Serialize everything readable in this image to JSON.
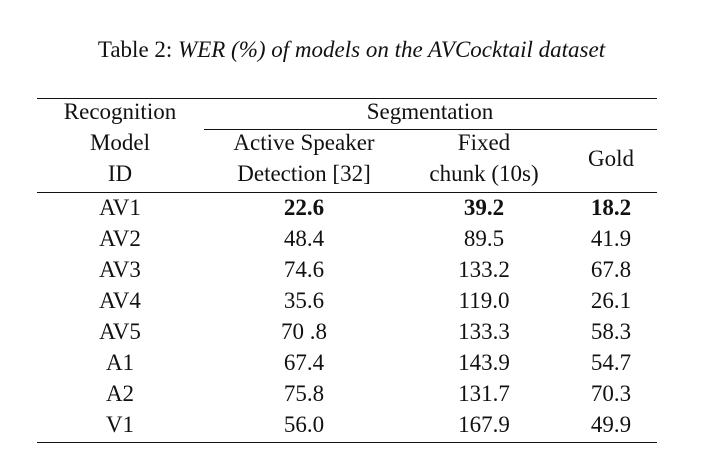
{
  "caption": {
    "prefix": "Table 2:",
    "title": "WER (%) of models on the AVCocktail dataset"
  },
  "table": {
    "header": {
      "model_col": [
        "Recognition",
        "Model",
        "ID"
      ],
      "group": "Segmentation",
      "col_asd": [
        "Active Speaker",
        "Detection [32]"
      ],
      "col_fixed": [
        "Fixed",
        "chunk (10s)"
      ],
      "col_gold": "Gold"
    },
    "rows": [
      [
        "AV1",
        "22.6",
        "39.2",
        "18.2"
      ],
      [
        "AV2",
        "48.4",
        "89.5",
        "41.9"
      ],
      [
        "AV3",
        "74.6",
        "133.2",
        "67.8"
      ],
      [
        "AV4",
        "35.6",
        "119.0",
        "26.1"
      ],
      [
        "AV5",
        "70 .8",
        "133.3",
        "58.3"
      ],
      [
        "A1",
        "67.4",
        "143.9",
        "54.7"
      ],
      [
        "A2",
        "75.8",
        "131.7",
        "70.3"
      ],
      [
        "V1",
        "56.0",
        "167.9",
        "49.9"
      ]
    ]
  }
}
